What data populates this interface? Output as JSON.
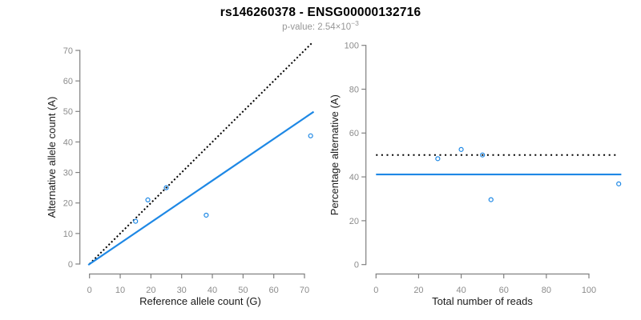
{
  "header": {
    "title": "rs146260378 - ENSG00000132716",
    "p_value": {
      "base": "p-value: 2.54×10",
      "exponent": "−3"
    }
  },
  "colors": {
    "accent_blue": "#1E88E5",
    "dotted_black": "#000000",
    "axis_line": "#808080",
    "tick_label": "#8C8C8C",
    "axis_title": "#1A1A1A",
    "subtitle_gray": "#979797",
    "background": "#FFFFFF"
  },
  "chart_data": [
    {
      "type": "scatter",
      "panel": "allele-counts",
      "xlabel": "Reference allele count (G)",
      "ylabel": "Alternative allele count (A)",
      "xticks": [
        0,
        10,
        20,
        30,
        40,
        50,
        60,
        70
      ],
      "yticks": [
        0,
        10,
        20,
        30,
        40,
        50,
        60,
        70
      ],
      "xlim": [
        -3,
        75
      ],
      "ylim": [
        -3,
        75
      ],
      "grid": false,
      "legend": null,
      "point_color": "#1E88E5",
      "points": [
        [
          15,
          14
        ],
        [
          19,
          21
        ],
        [
          25,
          25
        ],
        [
          38,
          16
        ],
        [
          72,
          42
        ]
      ],
      "lines": [
        {
          "name": "identity-line",
          "x1": 0,
          "y1": 0,
          "x2": 72.4,
          "y2": 72.4,
          "color": "#000000",
          "width": 2,
          "dash": "2 2.8"
        },
        {
          "name": "fit-line",
          "x1": -0.4,
          "y1": -0.3,
          "x2": 73,
          "y2": 49.9,
          "color": "#1E88E5",
          "width": 2.2,
          "dash": null
        }
      ]
    },
    {
      "type": "scatter",
      "panel": "percentage-vs-coverage",
      "xlabel": "Total number of reads",
      "ylabel": "Percentage alternative (A)",
      "xticks": [
        0,
        20,
        40,
        60,
        80,
        100
      ],
      "yticks": [
        0,
        20,
        40,
        60,
        80,
        100
      ],
      "xlim": [
        -4.5,
        118.5
      ],
      "ylim": [
        -4,
        104
      ],
      "grid": false,
      "legend": null,
      "point_color": "#1E88E5",
      "points": [
        [
          29,
          48.3
        ],
        [
          40,
          52.5
        ],
        [
          50,
          50
        ],
        [
          54,
          29.6
        ],
        [
          114,
          36.8
        ]
      ],
      "lines": [
        {
          "name": "expected-50pct-line",
          "x1": 0,
          "y1": 50,
          "x2": 114,
          "y2": 50,
          "color": "#000000",
          "width": 2,
          "dash": "2 4.6"
        },
        {
          "name": "mean-pct-line",
          "x1": 0,
          "y1": 41.1,
          "x2": 115.2,
          "y2": 41.1,
          "color": "#1E88E5",
          "width": 2.2,
          "dash": null
        }
      ]
    }
  ]
}
